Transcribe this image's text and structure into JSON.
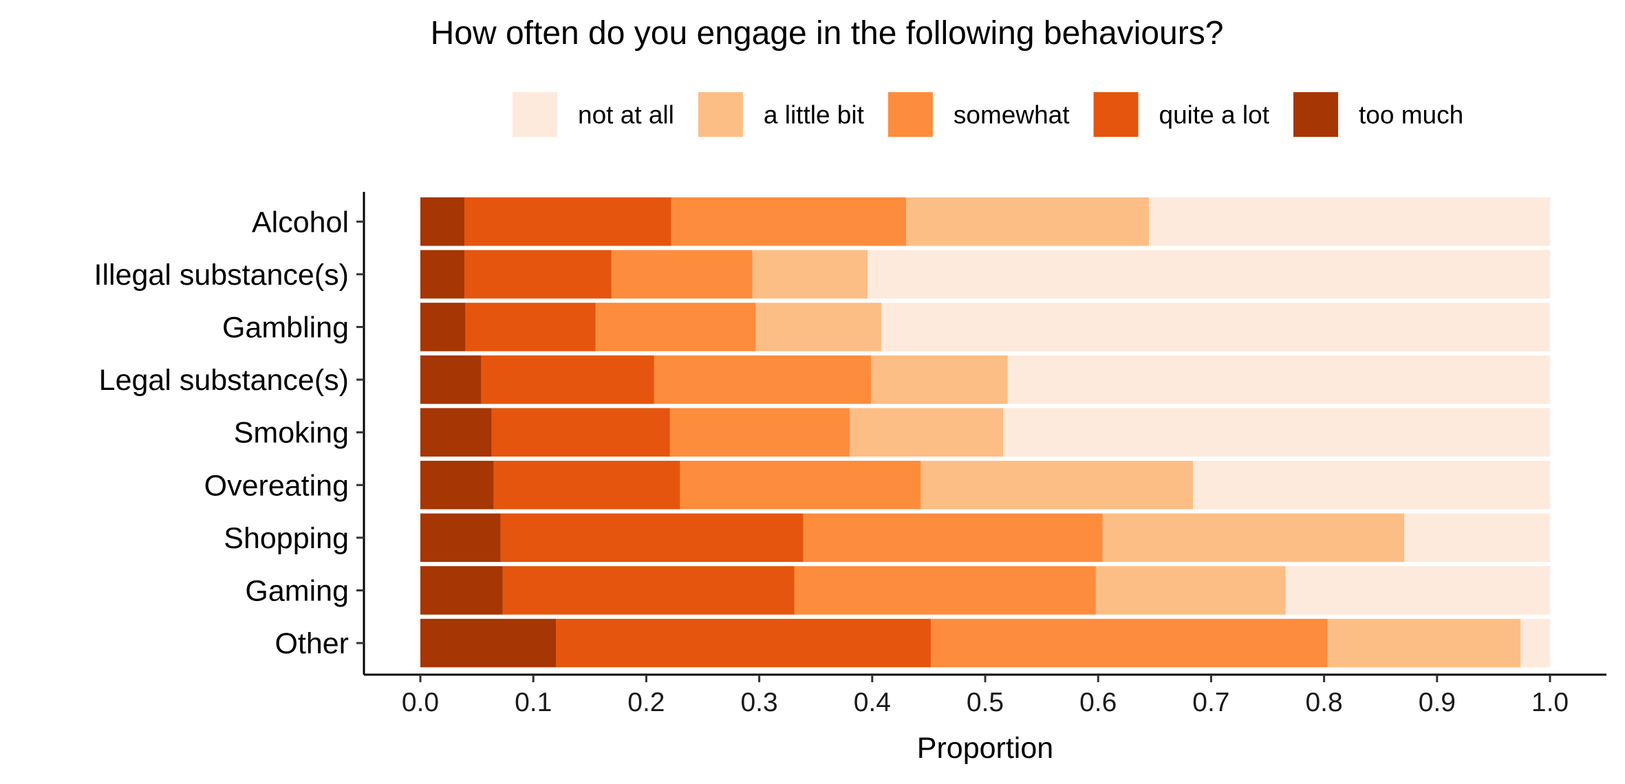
{
  "chart_data": {
    "type": "bar",
    "orientation": "horizontal",
    "stacked": true,
    "title": "How often do you engage in the following behaviours?",
    "xlabel": "Proportion",
    "ylabel": "",
    "xlim": [
      0,
      1
    ],
    "x_ticks": [
      "0.0",
      "0.1",
      "0.2",
      "0.3",
      "0.4",
      "0.5",
      "0.6",
      "0.7",
      "0.8",
      "0.9",
      "1.0"
    ],
    "grid": false,
    "legend_position": "top",
    "categories": [
      "Alcohol",
      "Illegal substance(s)",
      "Gambling",
      "Legal substance(s)",
      "Smoking",
      "Overeating",
      "Shopping",
      "Gaming",
      "Other"
    ],
    "series": [
      {
        "name": "too much",
        "color": "#a63603",
        "values": [
          0.039,
          0.039,
          0.04,
          0.054,
          0.063,
          0.065,
          0.071,
          0.073,
          0.12
        ]
      },
      {
        "name": "quite a lot",
        "color": "#e6550d",
        "values": [
          0.183,
          0.13,
          0.115,
          0.153,
          0.158,
          0.165,
          0.268,
          0.258,
          0.332
        ]
      },
      {
        "name": "somewhat",
        "color": "#fd8d3c",
        "values": [
          0.208,
          0.125,
          0.142,
          0.192,
          0.159,
          0.213,
          0.265,
          0.267,
          0.351
        ]
      },
      {
        "name": "a little bit",
        "color": "#fdbe85",
        "values": [
          0.215,
          0.102,
          0.111,
          0.121,
          0.136,
          0.241,
          0.267,
          0.168,
          0.171
        ]
      },
      {
        "name": "not at all",
        "color": "#feeadc",
        "values": [
          0.355,
          0.604,
          0.592,
          0.48,
          0.484,
          0.316,
          0.129,
          0.234,
          0.026
        ]
      }
    ],
    "legend_order": [
      "not at all",
      "a little bit",
      "somewhat",
      "quite a lot",
      "too much"
    ]
  }
}
